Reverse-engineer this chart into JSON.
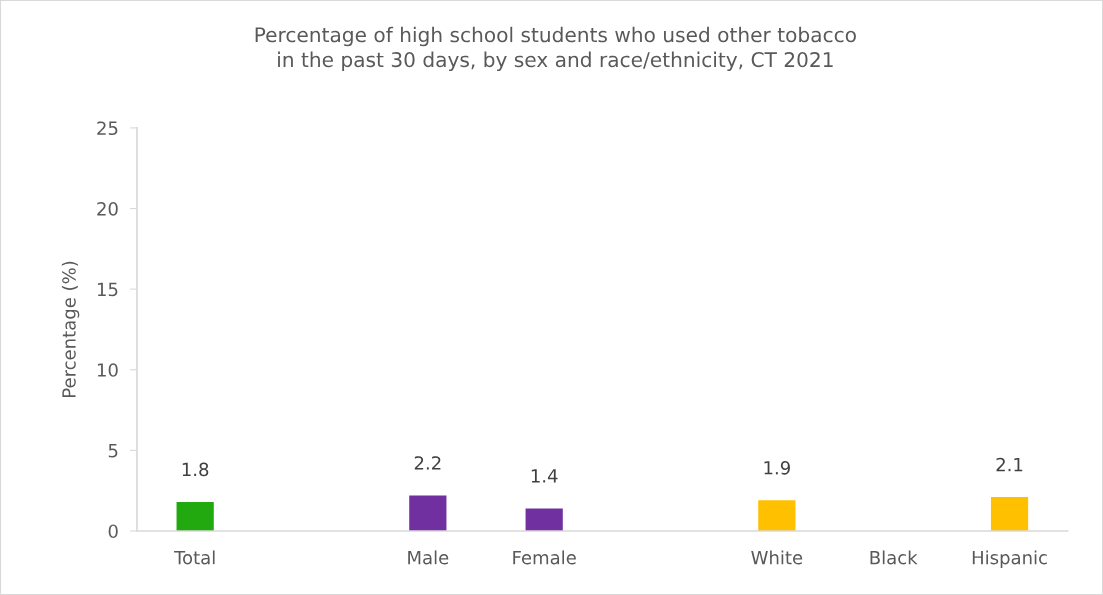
{
  "chart_data": {
    "type": "bar",
    "title": "Percentage of high school students who used other tobacco\nin the past 30 days, by sex and race/ethnicity, CT 2021",
    "ylabel": "Percentage (%)",
    "categories": [
      "Total",
      null,
      "Male",
      "Female",
      null,
      "White",
      "Black",
      "Hispanic"
    ],
    "values": [
      1.8,
      null,
      2.2,
      1.4,
      null,
      1.9,
      null,
      2.1
    ],
    "colors": [
      "#21a90f",
      null,
      "#7030a0",
      "#7030a0",
      null,
      "#ffc000",
      "#ffc000",
      "#ffc000"
    ],
    "ylim": [
      0,
      25
    ],
    "yticks": [
      0,
      5,
      10,
      15,
      20,
      25
    ],
    "grid": false,
    "legend": false,
    "data_labels": true
  }
}
